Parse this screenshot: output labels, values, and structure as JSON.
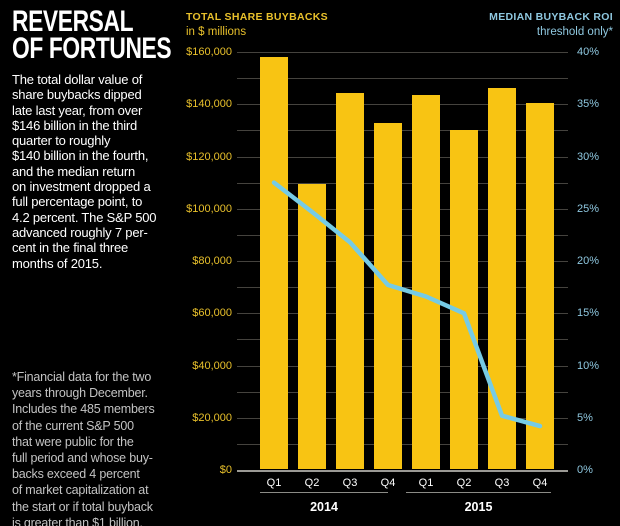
{
  "headline": {
    "line1": "REVERSAL",
    "line2": "OF FORTUNES"
  },
  "intro": "The total dollar value of\nshare buybacks dipped\nlate last year, from over\n$146 billion in the third\nquarter to roughly\n$140 billion in the fourth,\nand the median return\non investment dropped a\nfull percentage point, to\n4.2 percent. The S&P 500\nadvanced roughly 7 per-\ncent in the final three\nmonths of 2015.",
  "footnote": "*Financial data for the two\nyears through December.\nIncludes the 485 members\nof the current S&P 500\nthat were public for the\nfull period and whose buy-\nbacks exceed 4 percent\nof market capitalization at\nthe start or if total buyback\nis greater than $1 billion.",
  "legend_left": {
    "title": "TOTAL SHARE BUYBACKS",
    "subtitle": "in $ millions"
  },
  "legend_right": {
    "title": "MEDIAN BUYBACK ROI",
    "subtitle": "threshold only*"
  },
  "colors": {
    "background": "#000000",
    "bar_yellow": "#f8c413",
    "yellow_text": "#e8c02b",
    "roi_line": "#76cbe5",
    "blue_text": "#8fc8e0",
    "grid": "#45433e",
    "zero_axis": "#9b9a95",
    "white_text": "#ffffff",
    "footnote_text": "#c3c3c3"
  },
  "chart_data": {
    "type": "bar",
    "categories": [
      "Q1",
      "Q2",
      "Q3",
      "Q4",
      "Q1",
      "Q2",
      "Q3",
      "Q4"
    ],
    "group_labels": [
      "2014",
      "2015"
    ],
    "series": [
      {
        "name": "Total share buybacks ($ millions)",
        "type": "bar",
        "axis": "left",
        "values": [
          157900,
          109400,
          144300,
          132800,
          143400,
          130100,
          146400,
          140300
        ]
      },
      {
        "name": "Median buyback ROI (%)",
        "type": "line",
        "axis": "right",
        "values": [
          27.5,
          24.7,
          21.8,
          17.7,
          16.6,
          15.0,
          5.2,
          4.2
        ]
      }
    ],
    "left_axis": {
      "label": "TOTAL SHARE BUYBACKS in $ millions",
      "min": 0,
      "max": 160000,
      "tick_step": 20000,
      "grid_step": 10000,
      "tick_prefix": "$"
    },
    "right_axis": {
      "label": "MEDIAN BUYBACK ROI threshold only*",
      "min": 0,
      "max": 40,
      "tick_step": 5,
      "tick_suffix": "%"
    },
    "grid": true,
    "legend_position": "top"
  }
}
